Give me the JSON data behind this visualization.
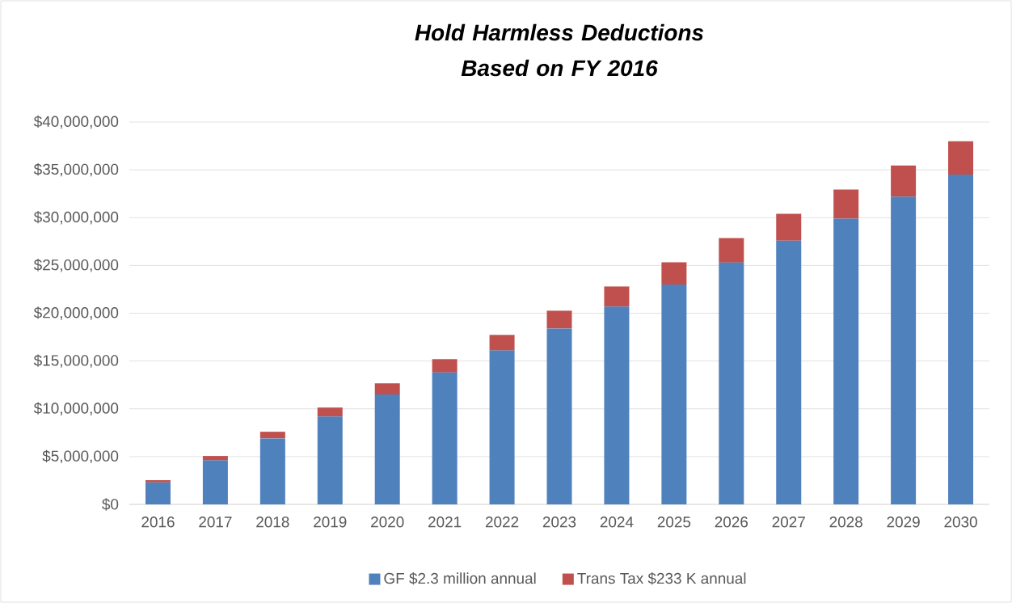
{
  "chart_data": {
    "type": "bar",
    "stacked": true,
    "title": "Hold Harmless Deductions Based on FY 2016",
    "categories": [
      "2016",
      "2017",
      "2018",
      "2019",
      "2020",
      "2021",
      "2022",
      "2023",
      "2024",
      "2025",
      "2026",
      "2027",
      "2028",
      "2029",
      "2030"
    ],
    "series": [
      {
        "name": "GF $2.3 million annual",
        "color": "#4f81bd",
        "values": [
          2300000,
          4600000,
          6900000,
          9200000,
          11500000,
          13800000,
          16100000,
          18400000,
          20700000,
          23000000,
          25300000,
          27600000,
          29900000,
          32200000,
          34500000
        ]
      },
      {
        "name": "Trans Tax $233 K annual",
        "color": "#c0504d",
        "values": [
          233000,
          466000,
          699000,
          932000,
          1165000,
          1398000,
          1631000,
          1864000,
          2097000,
          2330000,
          2563000,
          2796000,
          3029000,
          3262000,
          3495000
        ]
      }
    ],
    "ylim": [
      0,
      40000000
    ],
    "yticks": [
      {
        "value": 0,
        "label": "$0"
      },
      {
        "value": 5000000,
        "label": "$5,000,000"
      },
      {
        "value": 10000000,
        "label": "$10,000,000"
      },
      {
        "value": 15000000,
        "label": "$15,000,000"
      },
      {
        "value": 20000000,
        "label": "$20,000,000"
      },
      {
        "value": 25000000,
        "label": "$25,000,000"
      },
      {
        "value": 30000000,
        "label": "$30,000,000"
      },
      {
        "value": 35000000,
        "label": "$35,000,000"
      },
      {
        "value": 40000000,
        "label": "$40,000,000"
      }
    ],
    "grid": "y",
    "legend": "bottom"
  }
}
